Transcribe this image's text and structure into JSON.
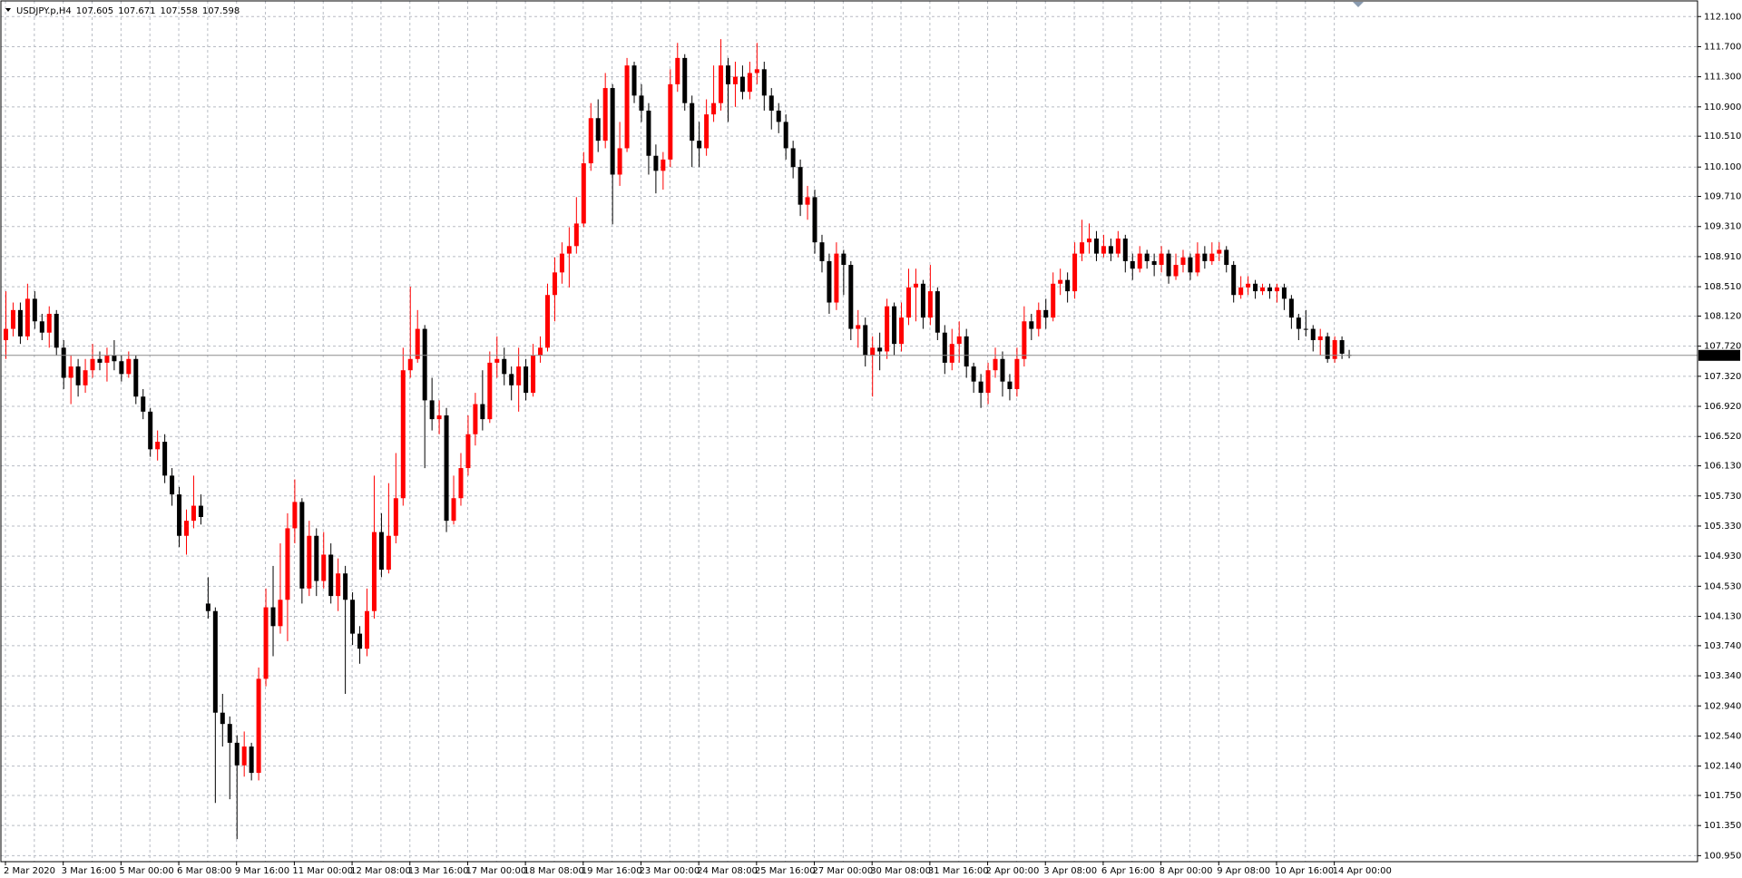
{
  "chart_data": {
    "type": "candlestick",
    "symbol": "USDJPY.p,H4",
    "up_color": "#ff0000",
    "down_color": "#000000",
    "grid": true,
    "ylim": [
      100.87,
      112.32
    ],
    "yticks": [
      {
        "value": 112.1,
        "label": "112.100"
      },
      {
        "value": 111.7,
        "label": "111.700"
      },
      {
        "value": 111.3,
        "label": "111.300"
      },
      {
        "value": 110.9,
        "label": "110.900"
      },
      {
        "value": 110.51,
        "label": "110.510"
      },
      {
        "value": 110.1,
        "label": "110.100"
      },
      {
        "value": 109.71,
        "label": "109.710"
      },
      {
        "value": 109.31,
        "label": "109.310"
      },
      {
        "value": 108.91,
        "label": "108.910"
      },
      {
        "value": 108.51,
        "label": "108.510"
      },
      {
        "value": 108.12,
        "label": "108.120"
      },
      {
        "value": 107.72,
        "label": "107.720"
      },
      {
        "value": 107.32,
        "label": "107.320"
      },
      {
        "value": 106.92,
        "label": "106.920"
      },
      {
        "value": 106.52,
        "label": "106.520"
      },
      {
        "value": 106.13,
        "label": "106.130"
      },
      {
        "value": 105.73,
        "label": "105.730"
      },
      {
        "value": 105.33,
        "label": "105.330"
      },
      {
        "value": 104.93,
        "label": "104.930"
      },
      {
        "value": 104.53,
        "label": "104.530"
      },
      {
        "value": 104.13,
        "label": "104.130"
      },
      {
        "value": 103.74,
        "label": "103.740"
      },
      {
        "value": 103.34,
        "label": "103.340"
      },
      {
        "value": 102.94,
        "label": "102.940"
      },
      {
        "value": 102.54,
        "label": "102.540"
      },
      {
        "value": 102.14,
        "label": "102.140"
      },
      {
        "value": 101.75,
        "label": "101.750"
      },
      {
        "value": 101.35,
        "label": "101.350"
      },
      {
        "value": 100.95,
        "label": "100.950"
      }
    ],
    "categories": [
      "2 Mar 2020",
      null,
      null,
      null,
      null,
      null,
      null,
      null,
      "3 Mar 16:00",
      null,
      null,
      null,
      null,
      null,
      null,
      null,
      "5 Mar 00:00",
      null,
      null,
      null,
      null,
      null,
      null,
      null,
      "6 Mar 08:00",
      null,
      null,
      null,
      null,
      null,
      null,
      null,
      "9 Mar 16:00",
      null,
      null,
      null,
      null,
      null,
      null,
      null,
      "11 Mar 00:00",
      null,
      null,
      null,
      null,
      null,
      null,
      null,
      "12 Mar 08:00",
      null,
      null,
      null,
      null,
      null,
      null,
      null,
      "13 Mar 16:00",
      null,
      null,
      null,
      null,
      null,
      null,
      null,
      "17 Mar 00:00",
      null,
      null,
      null,
      null,
      null,
      null,
      null,
      "18 Mar 08:00",
      null,
      null,
      null,
      null,
      null,
      null,
      null,
      "19 Mar 16:00",
      null,
      null,
      null,
      null,
      null,
      null,
      null,
      "23 Mar 00:00",
      null,
      null,
      null,
      null,
      null,
      null,
      null,
      "24 Mar 08:00",
      null,
      null,
      null,
      null,
      null,
      null,
      null,
      "25 Mar 16:00",
      null,
      null,
      null,
      null,
      null,
      null,
      null,
      "27 Mar 00:00",
      null,
      null,
      null,
      null,
      null,
      null,
      null,
      "30 Mar 08:00",
      null,
      null,
      null,
      null,
      null,
      null,
      null,
      "31 Mar 16:00",
      null,
      null,
      null,
      null,
      null,
      null,
      null,
      "2 Apr 00:00",
      null,
      null,
      null,
      null,
      null,
      null,
      null,
      "3 Apr 08:00",
      null,
      null,
      null,
      null,
      null,
      null,
      null,
      "6 Apr 16:00",
      null,
      null,
      null,
      null,
      null,
      null,
      null,
      "8 Apr 00:00",
      null,
      null,
      null,
      null,
      null,
      null,
      null,
      "9 Apr 08:00",
      null,
      null,
      null,
      null,
      null,
      null,
      null,
      "10 Apr 16:00",
      null,
      null,
      null,
      null,
      null,
      null,
      null,
      "14 Apr 00:00",
      null,
      null
    ],
    "open": [
      107.8,
      107.95,
      108.2,
      107.85,
      108.35,
      108.05,
      107.9,
      108.15,
      107.7,
      107.3,
      107.45,
      107.2,
      107.4,
      107.55,
      107.5,
      107.6,
      107.52,
      107.35,
      107.55,
      107.05,
      106.85,
      106.35,
      106.45,
      106,
      105.75,
      105.2,
      105.4,
      105.6,
      104.3,
      104.2,
      102.85,
      102.7,
      102.45,
      102.15,
      102.4,
      102.05,
      103.3,
      104.25,
      104,
      104.35,
      105.3,
      105.65,
      104.5,
      105.2,
      104.6,
      104.95,
      104.4,
      104.7,
      104.35,
      103.9,
      103.7,
      104.2,
      105.25,
      104.75,
      105.2,
      105.7,
      107.4,
      107.55,
      107.95,
      107,
      106.75,
      106.8,
      105.4,
      105.7,
      106.1,
      106.55,
      106.95,
      106.75,
      107.5,
      107.55,
      107.35,
      107.2,
      107.45,
      107.1,
      107.6,
      107.7,
      108.4,
      108.7,
      108.95,
      109.05,
      109.35,
      110.15,
      110.75,
      110.45,
      111.15,
      110,
      110.35,
      111.45,
      111.05,
      110.85,
      110.25,
      110.05,
      110.2,
      111.2,
      111.55,
      110.95,
      110.45,
      110.35,
      110.8,
      110.95,
      111.45,
      111.2,
      111.3,
      111.1,
      111.35,
      111.4,
      111.05,
      110.85,
      110.7,
      110.35,
      110.1,
      109.6,
      109.7,
      109.1,
      108.85,
      108.3,
      108.95,
      108.8,
      107.95,
      108,
      107.6,
      107.7,
      107.65,
      108.25,
      107.75,
      108.1,
      108.5,
      108.55,
      108.1,
      108.45,
      107.9,
      107.5,
      107.75,
      107.85,
      107.45,
      107.25,
      107.1,
      107.4,
      107.55,
      107.25,
      107.15,
      107.55,
      108.05,
      107.95,
      108.2,
      108.1,
      108.55,
      108.6,
      108.45,
      108.95,
      109.1,
      109.15,
      108.95,
      109.05,
      108.95,
      109.15,
      108.85,
      108.75,
      108.95,
      108.85,
      108.8,
      108.95,
      108.65,
      108.8,
      108.9,
      108.7,
      108.95,
      108.85,
      108.95,
      109,
      108.8,
      108.4,
      108.5,
      108.55,
      108.45,
      108.5,
      108.45,
      108.5,
      108.35,
      108.1,
      107.95,
      107.95,
      107.8,
      107.85,
      107.55,
      107.8,
      107.605
    ],
    "high": [
      108.45,
      108.3,
      108.3,
      108.55,
      108.45,
      108.15,
      108.25,
      108.2,
      107.8,
      107.6,
      107.55,
      107.55,
      107.75,
      107.65,
      107.7,
      107.8,
      107.6,
      107.65,
      107.6,
      107.15,
      106.9,
      106.6,
      106.55,
      106.1,
      105.85,
      105.55,
      106,
      105.75,
      104.65,
      104.25,
      103.1,
      102.8,
      102.55,
      102.6,
      102.45,
      103.45,
      104.5,
      104.8,
      105.1,
      105.5,
      105.95,
      105.7,
      105.4,
      105.3,
      105.25,
      105.1,
      104.9,
      104.8,
      104.45,
      104,
      104.5,
      106,
      105.5,
      105.9,
      106.3,
      107.7,
      108.51,
      108.2,
      108,
      107.3,
      107,
      106.9,
      106,
      106.3,
      106.8,
      107.1,
      107.4,
      107.65,
      107.85,
      107.7,
      107.45,
      107.7,
      107.55,
      107.75,
      107.85,
      108.55,
      108.9,
      109.1,
      109.3,
      109.7,
      110.3,
      110.95,
      111,
      111.35,
      111.2,
      110.7,
      111.55,
      111.5,
      111.2,
      110.95,
      110.4,
      110.3,
      111.4,
      111.75,
      111.6,
      111.05,
      110.7,
      111,
      111.45,
      111.8,
      111.55,
      111.5,
      111.45,
      111.5,
      111.75,
      111.5,
      111.15,
      110.95,
      110.8,
      110.45,
      110.2,
      109.85,
      109.8,
      109.2,
      108.95,
      109.1,
      109,
      108.85,
      108.2,
      108.1,
      107.85,
      107.9,
      108.35,
      108.3,
      108.3,
      108.75,
      108.75,
      108.6,
      108.8,
      108.5,
      108,
      107.95,
      108.05,
      107.95,
      107.5,
      107.35,
      107.5,
      107.7,
      107.65,
      107.35,
      107.7,
      108.25,
      108.15,
      108.3,
      108.35,
      108.7,
      108.75,
      108.7,
      109.1,
      109.4,
      109.35,
      109.25,
      109.2,
      109.15,
      109.25,
      109.2,
      108.95,
      109.05,
      109,
      108.95,
      109.05,
      109,
      108.95,
      109,
      108.95,
      109.1,
      109.05,
      109.1,
      109.1,
      109.05,
      108.85,
      108.65,
      108.65,
      108.6,
      108.55,
      108.55,
      108.55,
      108.55,
      108.4,
      108.15,
      108.2,
      108,
      107.95,
      107.9,
      107.85,
      107.85,
      107.671
    ],
    "low": [
      107.55,
      107.85,
      107.75,
      107.8,
      107.95,
      107.8,
      107.7,
      107.6,
      107.15,
      106.95,
      107.05,
      107.1,
      107.3,
      107.4,
      107.25,
      107.4,
      107.25,
      107.3,
      106.95,
      106.75,
      106.25,
      106.2,
      105.9,
      105.6,
      105.05,
      104.95,
      105.3,
      105.35,
      104.1,
      101.65,
      102.4,
      101.7,
      101.17,
      102,
      101.95,
      101.95,
      103.2,
      103.6,
      103.9,
      103.8,
      105.1,
      104.3,
      104.4,
      104.4,
      104.5,
      104.3,
      104.2,
      103.1,
      103.75,
      103.5,
      103.6,
      104.1,
      104.65,
      104.7,
      105.1,
      105.6,
      107.3,
      107.5,
      106.1,
      106.6,
      106.55,
      105.25,
      105.35,
      105.6,
      106,
      106.4,
      106.6,
      106.7,
      107.3,
      107.2,
      107,
      106.85,
      107,
      107.05,
      107.5,
      107.65,
      108.05,
      108.55,
      108.5,
      108.95,
      109.3,
      110.05,
      110.3,
      110.35,
      109.34,
      109.85,
      110.3,
      110.95,
      110.7,
      110,
      109.75,
      109.8,
      110.1,
      111.1,
      110.85,
      110.1,
      110.1,
      110.25,
      110.7,
      110.85,
      110.7,
      110.9,
      111,
      111,
      111.2,
      110.85,
      110.6,
      110.55,
      110.2,
      109.95,
      109.45,
      109.4,
      108.95,
      108.7,
      108.15,
      108.2,
      108.4,
      107.8,
      107.7,
      107.45,
      107.05,
      107.4,
      107.55,
      107.6,
      107.65,
      108,
      108.05,
      107.95,
      108,
      107.8,
      107.35,
      107.4,
      107.5,
      107.3,
      107.1,
      106.9,
      106.95,
      107.3,
      107.05,
      107,
      107.05,
      107.45,
      107.8,
      107.85,
      107.95,
      108.05,
      108.4,
      108.3,
      108.35,
      108.85,
      108.95,
      108.85,
      108.9,
      108.85,
      108.9,
      108.7,
      108.6,
      108.7,
      108.75,
      108.65,
      108.7,
      108.55,
      108.6,
      108.7,
      108.6,
      108.65,
      108.75,
      108.8,
      108.85,
      108.7,
      108.3,
      108.35,
      108.4,
      108.35,
      108.4,
      108.35,
      108.3,
      108.2,
      107.95,
      107.8,
      107.85,
      107.65,
      107.6,
      107.5,
      107.5,
      107.55,
      107.558
    ],
    "close": [
      107.95,
      108.2,
      107.85,
      108.35,
      108.05,
      107.9,
      108.15,
      107.7,
      107.3,
      107.45,
      107.2,
      107.4,
      107.55,
      107.5,
      107.6,
      107.52,
      107.35,
      107.55,
      107.05,
      106.85,
      106.35,
      106.45,
      106,
      105.75,
      105.2,
      105.4,
      105.6,
      105.45,
      104.2,
      102.85,
      102.7,
      102.45,
      102.15,
      102.4,
      102.05,
      103.3,
      104.25,
      104,
      104.35,
      105.3,
      105.65,
      104.5,
      105.2,
      104.6,
      104.95,
      104.4,
      104.7,
      104.35,
      103.9,
      103.7,
      104.2,
      105.25,
      104.75,
      105.2,
      105.7,
      107.4,
      107.55,
      107.95,
      107,
      106.75,
      106.8,
      105.4,
      105.7,
      106.1,
      106.55,
      106.95,
      106.75,
      107.5,
      107.55,
      107.35,
      107.2,
      107.45,
      107.1,
      107.6,
      107.7,
      108.4,
      108.7,
      108.95,
      109.05,
      109.35,
      110.15,
      110.75,
      110.45,
      111.15,
      110,
      110.35,
      111.45,
      111.05,
      110.85,
      110.25,
      110.05,
      110.2,
      111.2,
      111.55,
      110.95,
      110.45,
      110.35,
      110.8,
      110.95,
      111.45,
      111.2,
      111.3,
      111.1,
      111.35,
      111.4,
      111.05,
      110.85,
      110.7,
      110.35,
      110.1,
      109.6,
      109.7,
      109.1,
      108.85,
      108.3,
      108.95,
      108.8,
      107.95,
      108,
      107.6,
      107.7,
      107.65,
      108.25,
      107.75,
      108.1,
      108.5,
      108.55,
      108.1,
      108.45,
      107.9,
      107.5,
      107.75,
      107.85,
      107.45,
      107.25,
      107.1,
      107.4,
      107.55,
      107.25,
      107.15,
      107.55,
      108.05,
      107.95,
      108.2,
      108.1,
      108.55,
      108.6,
      108.45,
      108.95,
      109.1,
      109.15,
      108.95,
      109.05,
      108.95,
      109.15,
      108.85,
      108.75,
      108.95,
      108.85,
      108.8,
      108.95,
      108.65,
      108.8,
      108.9,
      108.7,
      108.95,
      108.85,
      108.95,
      109,
      108.8,
      108.4,
      108.5,
      108.55,
      108.45,
      108.5,
      108.45,
      108.5,
      108.35,
      108.1,
      107.95,
      107.95,
      107.8,
      107.85,
      107.55,
      107.8,
      107.62,
      107.598
    ]
  }
}
